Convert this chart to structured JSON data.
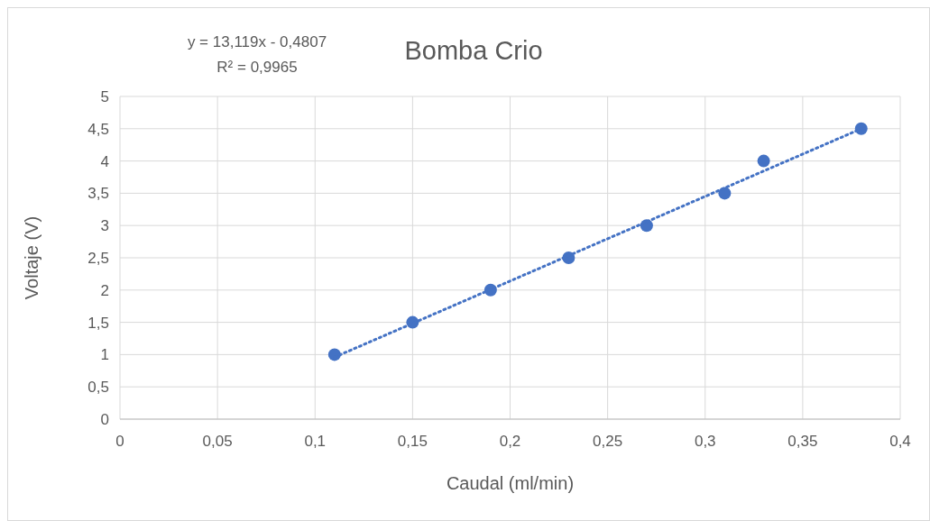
{
  "chart_data": {
    "type": "scatter",
    "title": "Bomba Crio",
    "xlabel": "Caudal (ml/min)",
    "ylabel": "Voltaje (V)",
    "annotations": [
      "y = 13,119x - 0,4807",
      "R² = 0,9965"
    ],
    "xlim": [
      0,
      0.4
    ],
    "ylim": [
      0,
      5
    ],
    "xticks": [
      0,
      {
        "value": 0.05,
        "label": "0,05"
      },
      {
        "value": 0.1,
        "label": "0,1"
      },
      {
        "value": 0.15,
        "label": "0,15"
      },
      {
        "value": 0.2,
        "label": "0,2"
      },
      {
        "value": 0.25,
        "label": "0,25"
      },
      {
        "value": 0.3,
        "label": "0,3"
      },
      {
        "value": 0.35,
        "label": "0,35"
      },
      {
        "value": 0.4,
        "label": "0,4"
      }
    ],
    "yticks": [
      0,
      {
        "value": 0.5,
        "label": "0,5"
      },
      1,
      {
        "value": 1.5,
        "label": "1,5"
      },
      2,
      {
        "value": 2.5,
        "label": "2,5"
      },
      3,
      {
        "value": 3.5,
        "label": "3,5"
      },
      4,
      {
        "value": 4.5,
        "label": "4,5"
      },
      5
    ],
    "grid": true,
    "series": [
      {
        "color": "#4472c4",
        "marker": "circle",
        "x": [
          0.11,
          0.15,
          0.19,
          0.23,
          0.27,
          0.31,
          0.33,
          0.38
        ],
        "values": [
          1,
          1.5,
          2,
          2.5,
          3,
          3.5,
          4,
          4.5
        ]
      },
      {
        "type": "line",
        "color": "#4472c4",
        "line_style": "dotted",
        "x": [
          0.11,
          0.38
        ],
        "values": [
          0.96,
          4.5
        ]
      }
    ]
  }
}
